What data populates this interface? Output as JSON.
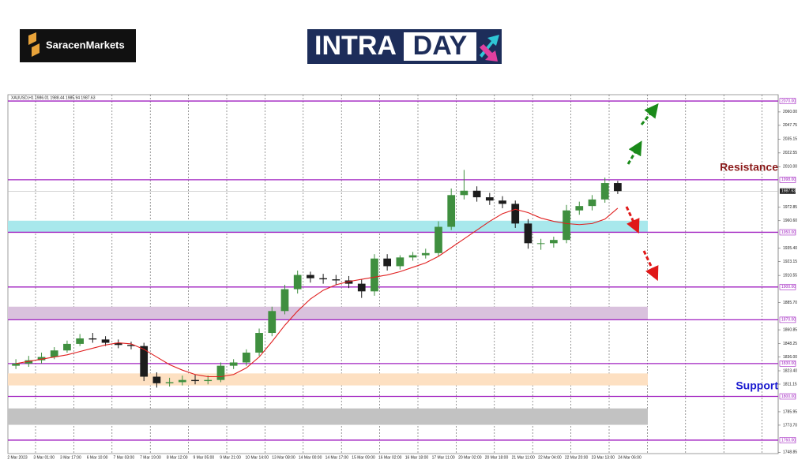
{
  "header": {
    "brand": "SaracenMarkets",
    "banner_left": "INTRA",
    "banner_right": "DAY"
  },
  "chart_data": {
    "type": "candlestick",
    "symbol_info": "XAUUSD,H1  1986.01 1988.44 1985.94 1987.63",
    "categories": [
      "2 Mar 2023",
      "3 Mar 01:00",
      "3 Mar 17:00",
      "6 Mar 10:00",
      "7 Mar 03:00",
      "7 Mar 19:00",
      "8 Mar 12:00",
      "9 Mar 05:00",
      "9 Mar 21:00",
      "10 Mar 14:00",
      "13 Mar 08:00",
      "14 Mar 00:00",
      "14 Mar 17:00",
      "15 Mar 09:00",
      "16 Mar 02:00",
      "16 Mar 18:00",
      "17 Mar 11:00",
      "20 Mar 02:00",
      "20 Mar 18:00",
      "21 Mar 11:00",
      "22 Mar 04:00",
      "22 Mar 20:00",
      "23 Mar 13:00",
      "24 Mar 06:00"
    ],
    "open": [
      1828,
      1830,
      1833,
      1836,
      1842,
      1848,
      1853,
      1852,
      1849,
      1847,
      1846,
      1818,
      1812,
      1813,
      1815,
      1814,
      1815,
      1828,
      1831,
      1840,
      1858,
      1878,
      1898,
      1911,
      1908,
      1907,
      1906,
      1903,
      1896,
      1926,
      1919,
      1927,
      1929,
      1931,
      1955,
      1984,
      1988,
      1982,
      1979,
      1976,
      1958,
      1940,
      1940,
      1943,
      1970,
      1974,
      1980,
      1995
    ],
    "high": [
      1834,
      1837,
      1840,
      1845,
      1851,
      1857,
      1858,
      1855,
      1852,
      1850,
      1849,
      1822,
      1817,
      1819,
      1820,
      1819,
      1831,
      1834,
      1843,
      1862,
      1882,
      1902,
      1915,
      1914,
      1912,
      1911,
      1910,
      1907,
      1930,
      1930,
      1929,
      1932,
      1935,
      1960,
      1990,
      2007,
      1992,
      1986,
      1983,
      1979,
      1962,
      1944,
      1946,
      1975,
      1978,
      1984,
      2000,
      1997
    ],
    "low": [
      1825,
      1827,
      1830,
      1834,
      1840,
      1846,
      1849,
      1846,
      1844,
      1843,
      1814,
      1808,
      1809,
      1810,
      1811,
      1811,
      1813,
      1825,
      1828,
      1837,
      1855,
      1875,
      1894,
      1904,
      1903,
      1902,
      1899,
      1890,
      1892,
      1915,
      1916,
      1924,
      1926,
      1928,
      1952,
      1980,
      1978,
      1975,
      1972,
      1954,
      1935,
      1934,
      1936,
      1940,
      1966,
      1970,
      1977,
      1985
    ],
    "close": [
      1830,
      1833,
      1836,
      1842,
      1848,
      1853,
      1852,
      1849,
      1847,
      1846,
      1818,
      1812,
      1813,
      1815,
      1814,
      1815,
      1828,
      1831,
      1840,
      1858,
      1878,
      1898,
      1911,
      1908,
      1907,
      1906,
      1903,
      1896,
      1926,
      1919,
      1927,
      1929,
      1931,
      1955,
      1984,
      1988,
      1982,
      1979,
      1976,
      1958,
      1940,
      1940,
      1943,
      1970,
      1974,
      1980,
      1995,
      1987.63
    ],
    "up_color": "#3f8f3f",
    "down_color": "#1c1c1c",
    "moving_average": {
      "color": "#e02020",
      "values": [
        1830,
        1832,
        1834,
        1836,
        1838,
        1841,
        1844,
        1847,
        1849,
        1848,
        1843,
        1836,
        1829,
        1824,
        1820,
        1818,
        1818,
        1820,
        1826,
        1836,
        1850,
        1865,
        1878,
        1889,
        1897,
        1902,
        1905,
        1907,
        1909,
        1911,
        1914,
        1918,
        1922,
        1928,
        1936,
        1944,
        1952,
        1960,
        1967,
        1971,
        1968,
        1963,
        1960,
        1958,
        1957,
        1958,
        1962,
        1972
      ]
    },
    "ylim": [
      1747.7,
      2075.8
    ],
    "yticks": [
      {
        "value": 2060,
        "label": "2060.00"
      },
      {
        "value": 2047.75,
        "label": "2047.75"
      },
      {
        "value": 2035.15,
        "label": "2035.15"
      },
      {
        "value": 2022.55,
        "label": "2022.55"
      },
      {
        "value": 2010,
        "label": "2010.00"
      },
      {
        "value": 1972.85,
        "label": "1972.85"
      },
      {
        "value": 1960.6,
        "label": "1960.60"
      },
      {
        "value": 1935.4,
        "label": "1935.40"
      },
      {
        "value": 1923.15,
        "label": "1923.15"
      },
      {
        "value": 1910.55,
        "label": "1910.55"
      },
      {
        "value": 1885.7,
        "label": "1885.70"
      },
      {
        "value": 1860.85,
        "label": "1860.85"
      },
      {
        "value": 1848.25,
        "label": "1848.25"
      },
      {
        "value": 1836,
        "label": "1836.00"
      },
      {
        "value": 1823.4,
        "label": "1823.40"
      },
      {
        "value": 1811.15,
        "label": "1811.15"
      },
      {
        "value": 1785.95,
        "label": "1785.95"
      },
      {
        "value": 1773.7,
        "label": "1773.70"
      },
      {
        "value": 1748.85,
        "label": "1748.85"
      }
    ],
    "levels": [
      {
        "value": 2070,
        "label": "2070.00"
      },
      {
        "value": 1998,
        "label": "1998.00"
      },
      {
        "value": 1950,
        "label": "1950.00"
      },
      {
        "value": 1900,
        "label": "1900.00"
      },
      {
        "value": 1870,
        "label": "1870.00"
      },
      {
        "value": 1830,
        "label": "1830.00"
      },
      {
        "value": 1800,
        "label": "1800.00"
      },
      {
        "value": 1760,
        "label": "1760.00"
      }
    ],
    "level_color": "#a020c0",
    "zones": [
      {
        "low": 1950,
        "high": 1960.6,
        "color": "#a8e8ec"
      },
      {
        "low": 1870,
        "high": 1882,
        "color": "#d9c1dd"
      },
      {
        "low": 1810,
        "high": 1821,
        "color": "#fde0c2"
      },
      {
        "low": 1774,
        "high": 1789,
        "color": "#c2c2c2"
      }
    ],
    "current_price": {
      "value": 1987.63,
      "label": "1987.63"
    },
    "annotations": [
      "Resistance",
      "Support"
    ]
  }
}
